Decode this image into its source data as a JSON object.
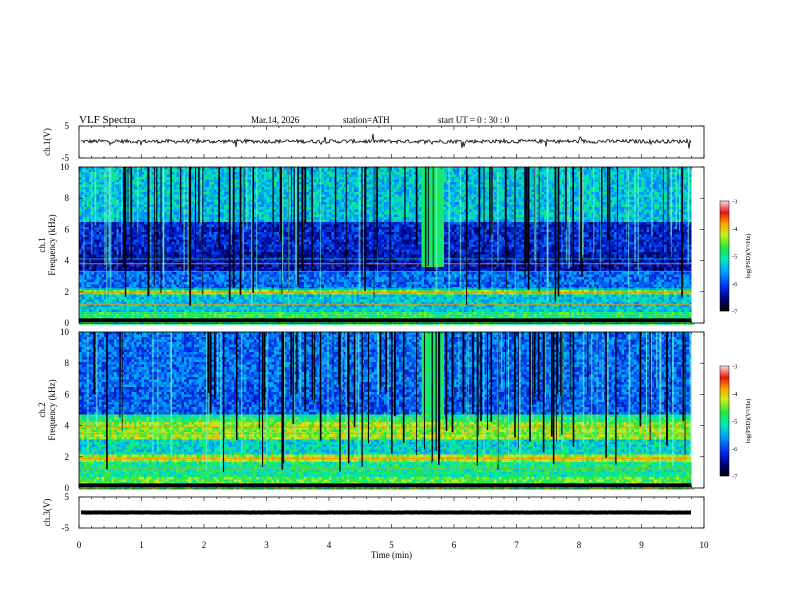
{
  "header": {
    "title": "VLF  Spectra",
    "date": "Mar.14, 2026",
    "station": "station=ATH",
    "start": "start  UT  =   0 : 30 : 0"
  },
  "chart_data": [
    {
      "type": "line",
      "name": "ch1-waveform",
      "ylabel": "ch.1(V)",
      "ylim": [
        -5,
        5
      ],
      "yticks": [
        "5",
        "-5"
      ],
      "xlim": [
        0,
        10
      ],
      "level": 0.2,
      "noise_amplitude": 0.6
    },
    {
      "type": "heatmap",
      "name": "ch1-spectrogram",
      "ylabel": "ch.1\nFrequency (kHz)",
      "ylim": [
        0,
        10
      ],
      "yticks": [
        "0",
        "2",
        "4",
        "6",
        "8",
        "10"
      ],
      "xlim": [
        0,
        10
      ],
      "data_end_min": 9.8,
      "colorbar": {
        "label": "log(PSD)(V²/Hz)",
        "range": [
          -7,
          -3
        ],
        "ticks": [
          "-3",
          "-4",
          "-5",
          "-6",
          "-7"
        ]
      }
    },
    {
      "type": "heatmap",
      "name": "ch2-spectrogram",
      "ylabel": "ch.2\nFrequency (kHz)",
      "ylim": [
        0,
        10
      ],
      "yticks": [
        "0",
        "2",
        "4",
        "6",
        "8",
        "10"
      ],
      "xlim": [
        0,
        10
      ],
      "data_end_min": 9.8,
      "colorbar": {
        "label": "log(PSD)(V²/Hz)",
        "range": [
          -7,
          -3
        ],
        "ticks": [
          "-3",
          "-4",
          "-5",
          "-6",
          "-7"
        ]
      }
    },
    {
      "type": "line",
      "name": "ch3-waveform",
      "ylabel": "ch.3(V)",
      "ylim": [
        -5,
        5
      ],
      "yticks": [
        "5",
        "-5"
      ],
      "xlim": [
        0,
        10
      ],
      "level": 0.0,
      "noise_amplitude": 0.05
    }
  ],
  "x_axis": {
    "label": "Time  (min)",
    "ticks": [
      "0",
      "1",
      "2",
      "3",
      "4",
      "5",
      "6",
      "7",
      "8",
      "9",
      "10"
    ]
  }
}
